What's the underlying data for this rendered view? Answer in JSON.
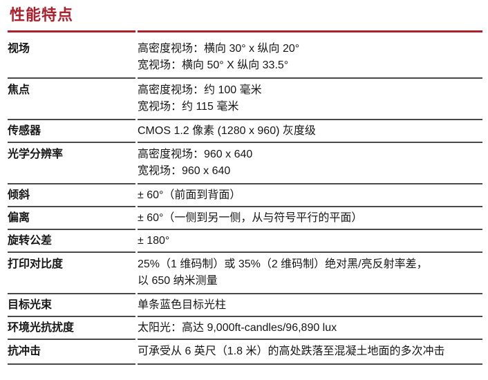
{
  "document": {
    "title": "性能特点"
  },
  "colors": {
    "accent": "#AE1F2B",
    "divider": "#48484a",
    "text": "#161616"
  },
  "spec_table": {
    "rows": [
      {
        "label": "视场",
        "value": "高密度视场：横向 30° x 纵向 20°\n宽视场：横向 50° X 纵向 33.5°"
      },
      {
        "label": "焦点",
        "value": "高密度视场：约 100 毫米\n宽视场：约 115 毫米"
      },
      {
        "label": "传感器",
        "value": "CMOS 1.2 像素 (1280 x 960) 灰度级"
      },
      {
        "label": "光学分辨率",
        "value": "高密度视场：960 x 640\n宽视场：960 x 640"
      },
      {
        "label": "倾斜",
        "value": "± 60°（前面到背面）"
      },
      {
        "label": "偏离",
        "value": "± 60°（一侧到另一侧，从与符号平行的平面）"
      },
      {
        "label": "旋转公差",
        "value": "± 180°"
      },
      {
        "label": "打印对比度",
        "value": "25%（1 维码制）或 35%（2 维码制）绝对黑/亮反射率差，\n以 650 纳米测量"
      },
      {
        "label": "目标光束",
        "value": "单条蓝色目标光柱"
      },
      {
        "label": "环境光抗扰度",
        "value": "太阳光：高达 9,000ft-candles/96,890 lux"
      },
      {
        "label": "抗冲击",
        "value": "可承受从 6 英尺（1.8 米）的高处跌落至混凝土地面的多次冲击"
      }
    ]
  }
}
